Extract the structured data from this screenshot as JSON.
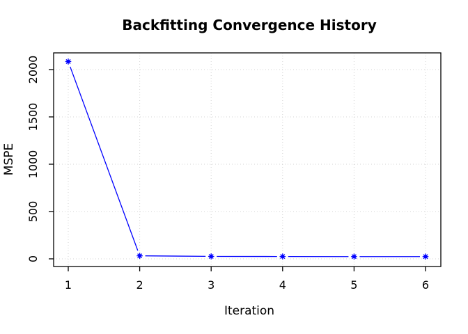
{
  "chart_data": {
    "type": "line",
    "title": "Backfitting Convergence History",
    "xlabel": "Iteration",
    "ylabel": "MSPE",
    "x": [
      1,
      2,
      3,
      4,
      5,
      6
    ],
    "series": [
      {
        "name": "MSPE",
        "values": [
          2085,
          32,
          26,
          25,
          24,
          24
        ],
        "color": "#0000ff",
        "marker": "star-dot",
        "line_style": "solid"
      }
    ],
    "xticks": [
      "1",
      "2",
      "3",
      "4",
      "5",
      "6"
    ],
    "yticks": [
      "0",
      "500",
      "1000",
      "1500",
      "2000"
    ],
    "ytick_values": [
      0,
      500,
      1000,
      1500,
      2000
    ],
    "xlim": [
      0.8,
      6.2
    ],
    "ylim": [
      0,
      2175
    ],
    "grid": true,
    "grid_style": "dotted",
    "legend": "none",
    "colors": {
      "line": "#0000ff",
      "grid": "#d3d3d3",
      "axis": "#000000",
      "text": "#000000",
      "background": "#ffffff"
    }
  }
}
